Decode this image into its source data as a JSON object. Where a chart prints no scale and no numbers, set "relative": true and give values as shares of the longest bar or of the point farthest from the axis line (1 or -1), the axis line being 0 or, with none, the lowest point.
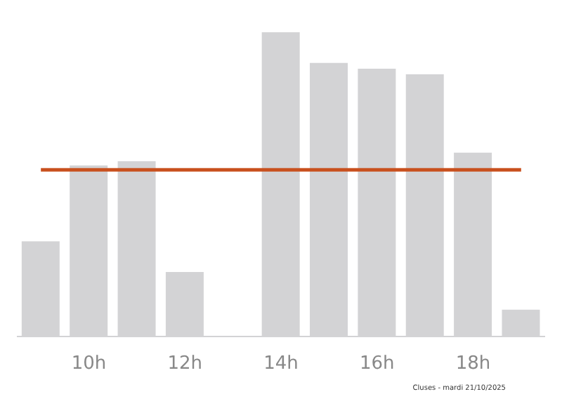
{
  "chart_data": {
    "type": "bar",
    "relative": true,
    "categories": [
      null,
      "10h",
      null,
      "12h",
      null,
      "14h",
      null,
      "16h",
      null,
      "18h",
      null
    ],
    "values": [
      0.313,
      0.562,
      0.576,
      0.212,
      0,
      1,
      0.899,
      0.88,
      0.862,
      0.604,
      0.088
    ],
    "color": "#d3d3d5",
    "ref_lines": [
      {
        "axis": "y",
        "value": 0.548,
        "color": "#c8501e"
      }
    ],
    "annotations": [
      "Cluses - mardi 21/10/2025"
    ],
    "grid": false,
    "legend": false
  }
}
